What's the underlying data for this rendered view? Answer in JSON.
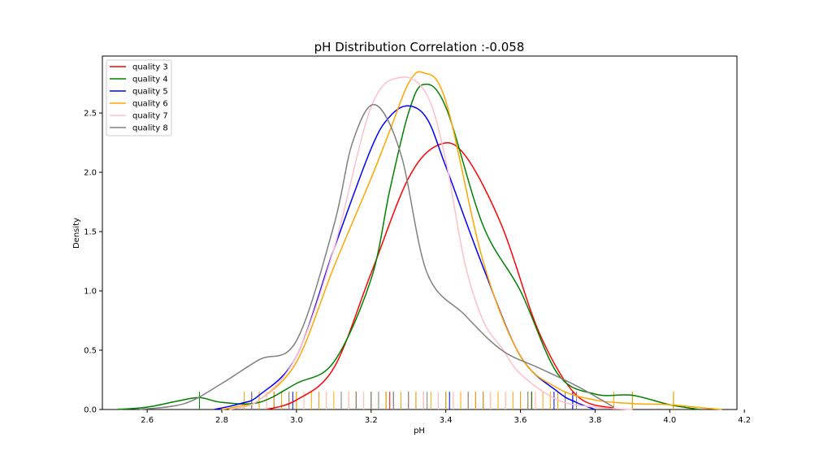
{
  "chart_data": {
    "type": "line",
    "title": "pH Distribution Correlation :-0.058",
    "xlabel": "pH",
    "ylabel": "Density",
    "xlim": [
      2.48,
      4.18
    ],
    "ylim": [
      0,
      2.98
    ],
    "xticks": [
      2.6,
      2.8,
      3.0,
      3.2,
      3.4,
      3.6,
      3.8,
      4.0,
      4.2
    ],
    "xtick_labels": [
      "2.6",
      "2.8",
      "3.0",
      "3.2",
      "3.4",
      "3.6",
      "3.8",
      "4.0",
      "4.2"
    ],
    "yticks": [
      0.0,
      0.5,
      1.0,
      1.5,
      2.0,
      2.5
    ],
    "ytick_labels": [
      "0.0",
      "0.5",
      "1.0",
      "1.5",
      "2.0",
      "2.5"
    ],
    "grid": false,
    "legend_position": "top-left",
    "series": [
      {
        "name": "quality 3",
        "color": "#ff0000",
        "x": [
          2.92,
          3.0,
          3.1,
          3.2,
          3.3,
          3.38,
          3.45,
          3.55,
          3.65,
          3.75,
          3.85
        ],
        "y": [
          0.0,
          0.08,
          0.35,
          1.15,
          1.95,
          2.23,
          2.15,
          1.55,
          0.65,
          0.12,
          0.01
        ],
        "rug": [
          3.16,
          3.25,
          3.3,
          3.38,
          3.48,
          3.63
        ]
      },
      {
        "name": "quality 4",
        "color": "#008000",
        "x": [
          2.52,
          2.6,
          2.68,
          2.74,
          2.8,
          2.9,
          3.0,
          3.1,
          3.2,
          3.25,
          3.3,
          3.34,
          3.4,
          3.5,
          3.6,
          3.7,
          3.8,
          3.9,
          4.0,
          4.08
        ],
        "y": [
          0.0,
          0.02,
          0.07,
          0.1,
          0.06,
          0.06,
          0.22,
          0.4,
          1.1,
          1.85,
          2.5,
          2.74,
          2.55,
          1.55,
          1.0,
          0.3,
          0.13,
          0.12,
          0.04,
          0.0
        ],
        "rug": [
          2.74,
          2.9,
          3.0,
          3.16,
          3.24,
          3.32,
          3.4,
          3.5,
          3.63,
          3.74,
          3.9,
          4.01
        ]
      },
      {
        "name": "quality 5",
        "color": "#0000ff",
        "x": [
          2.78,
          2.85,
          2.9,
          3.0,
          3.1,
          3.2,
          3.25,
          3.3,
          3.35,
          3.4,
          3.5,
          3.6,
          3.7,
          3.75,
          3.8
        ],
        "y": [
          0.0,
          0.05,
          0.12,
          0.45,
          1.35,
          2.2,
          2.47,
          2.56,
          2.45,
          2.05,
          1.2,
          0.45,
          0.15,
          0.06,
          0.0
        ],
        "rug": [
          2.88,
          2.94,
          2.99,
          3.06,
          3.12,
          3.2,
          3.26,
          3.34,
          3.41,
          3.5,
          3.6,
          3.69,
          3.74
        ]
      },
      {
        "name": "quality 6",
        "color": "#ffa500",
        "x": [
          2.8,
          2.85,
          2.9,
          3.0,
          3.1,
          3.2,
          3.25,
          3.3,
          3.34,
          3.4,
          3.5,
          3.6,
          3.7,
          3.8,
          3.9,
          4.0,
          4.1,
          4.14
        ],
        "y": [
          0.0,
          0.03,
          0.08,
          0.4,
          1.2,
          1.95,
          2.35,
          2.75,
          2.84,
          2.6,
          1.25,
          0.45,
          0.18,
          0.08,
          0.05,
          0.04,
          0.01,
          0.0
        ],
        "rug": [
          2.86,
          2.88,
          2.9,
          2.92,
          2.94,
          2.96,
          2.98,
          3.0,
          3.02,
          3.04,
          3.06,
          3.08,
          3.1,
          3.12,
          3.14,
          3.16,
          3.18,
          3.2,
          3.22,
          3.24,
          3.26,
          3.28,
          3.3,
          3.32,
          3.34,
          3.36,
          3.38,
          3.4,
          3.42,
          3.44,
          3.46,
          3.48,
          3.5,
          3.52,
          3.54,
          3.56,
          3.58,
          3.6,
          3.62,
          3.64,
          3.66,
          3.68,
          3.7,
          3.72,
          3.85,
          3.9,
          4.01
        ]
      },
      {
        "name": "quality 7",
        "color": "#ffc0cb",
        "x": [
          2.82,
          2.9,
          3.0,
          3.1,
          3.2,
          3.28,
          3.35,
          3.4,
          3.45,
          3.5,
          3.55,
          3.6,
          3.7,
          3.8,
          3.9
        ],
        "y": [
          0.0,
          0.08,
          0.45,
          1.35,
          2.55,
          2.8,
          2.65,
          2.1,
          1.25,
          0.75,
          0.52,
          0.3,
          0.08,
          0.02,
          0.0
        ],
        "rug": [
          2.92,
          3.02,
          3.08,
          3.14,
          3.18,
          3.22,
          3.26,
          3.3,
          3.34,
          3.38,
          3.42,
          3.46,
          3.52,
          3.56,
          3.64
        ]
      },
      {
        "name": "quality 8",
        "color": "#808080",
        "x": [
          2.58,
          2.7,
          2.8,
          2.9,
          3.0,
          3.1,
          3.15,
          3.21,
          3.28,
          3.35,
          3.45,
          3.55,
          3.65,
          3.75,
          3.85
        ],
        "y": [
          0.0,
          0.05,
          0.22,
          0.42,
          0.58,
          1.55,
          2.25,
          2.57,
          2.15,
          1.15,
          0.8,
          0.5,
          0.35,
          0.2,
          0.02
        ],
        "rug": [
          2.88,
          2.98,
          3.12,
          3.16,
          3.2,
          3.22,
          3.26,
          3.3,
          3.35,
          3.46,
          3.62,
          3.72,
          3.75
        ]
      }
    ]
  }
}
